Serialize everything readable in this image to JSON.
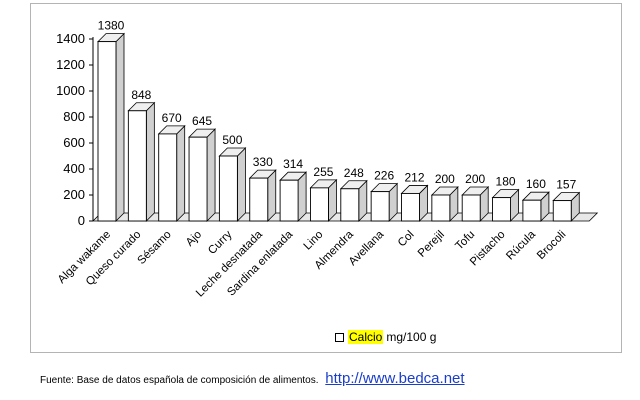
{
  "chart_data": {
    "type": "bar",
    "categories": [
      "Alga wakame",
      "Queso curado",
      "Sésamo",
      "Ajo",
      "Curry",
      "Leche desnatada",
      "Sardina enlatada",
      "Lino",
      "Almendra",
      "Avellana",
      "Col",
      "Perejil",
      "Tofu",
      "Pistacho",
      "Rúcula",
      "Brocoli"
    ],
    "values": [
      1380,
      848,
      670,
      645,
      500,
      330,
      314,
      255,
      248,
      226,
      212,
      200,
      200,
      180,
      160,
      157
    ],
    "data_labels": [
      "1380",
      "848",
      "670",
      "645",
      "500",
      "330",
      "314",
      "255",
      "248",
      "226",
      "212",
      "200",
      "200",
      "180",
      "160",
      "157"
    ],
    "yticks": [
      "0",
      "200",
      "400",
      "600",
      "800",
      "1000",
      "1200",
      "1400"
    ],
    "ylim": [
      0,
      1400
    ],
    "style": "3d-column",
    "grid": false,
    "legend_position": "bottom",
    "bar_color": "#ffffff",
    "bar_side_color": "#d0d0d0",
    "legend": {
      "name_highlighted": "Calcio",
      "unit": "mg/100 g",
      "highlight_color": "#ffff00"
    }
  },
  "source": {
    "text": "Fuente: Base de datos española de composición de alimentos.",
    "link": "http://www.bedca.net",
    "link_color": "#1a3ecb"
  }
}
